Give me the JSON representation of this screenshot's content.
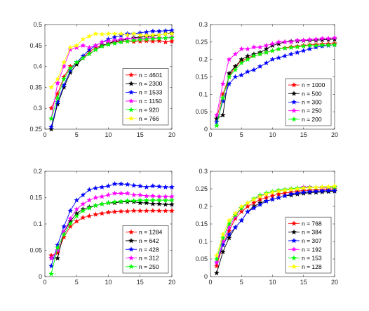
{
  "chart_data": [
    {
      "type": "line",
      "x": [
        1,
        2,
        3,
        4,
        5,
        6,
        7,
        8,
        9,
        10,
        11,
        12,
        13,
        14,
        15,
        16,
        17,
        18,
        19,
        20
      ],
      "xlim": [
        0,
        20
      ],
      "ylim": [
        0.25,
        0.5
      ],
      "xticks": [
        0,
        5,
        10,
        15,
        20
      ],
      "yticks": [
        0.25,
        0.3,
        0.35,
        0.4,
        0.45,
        0.5
      ],
      "ytick_labels": [
        "0.25",
        "0.3",
        "0.35",
        "0.4",
        "0.45",
        "0.5"
      ],
      "legend_position": "bottom-right",
      "series": [
        {
          "name": "n = 4601",
          "color": "#ff0000",
          "values": [
            0.3,
            0.335,
            0.375,
            0.4,
            0.405,
            0.42,
            0.435,
            0.445,
            0.45,
            0.455,
            0.458,
            0.46,
            0.46,
            0.459,
            0.46,
            0.461,
            0.46,
            0.461,
            0.458,
            0.46
          ]
        },
        {
          "name": "n = 2300",
          "color": "#000000",
          "values": [
            0.25,
            0.31,
            0.35,
            0.385,
            0.405,
            0.42,
            0.43,
            0.44,
            0.45,
            0.455,
            0.46,
            0.462,
            0.465,
            0.468,
            0.47,
            0.471,
            0.473,
            0.475,
            0.478,
            0.48
          ]
        },
        {
          "name": "n = 1533",
          "color": "#0000ff",
          "values": [
            0.255,
            0.315,
            0.355,
            0.39,
            0.41,
            0.425,
            0.44,
            0.45,
            0.458,
            0.465,
            0.47,
            0.474,
            0.478,
            0.478,
            0.48,
            0.482,
            0.484,
            0.484,
            0.485,
            0.486
          ]
        },
        {
          "name": "n = 1150",
          "color": "#ff00ff",
          "values": [
            0.275,
            0.36,
            0.4,
            0.44,
            0.445,
            0.45,
            0.445,
            0.45,
            0.458,
            0.46,
            0.462,
            0.465,
            0.466,
            0.466,
            0.466,
            0.468,
            0.468,
            0.468,
            0.468,
            0.47
          ]
        },
        {
          "name": "n = 920",
          "color": "#00ff00",
          "values": [
            0.275,
            0.325,
            0.37,
            0.395,
            0.41,
            0.42,
            0.43,
            0.44,
            0.448,
            0.452,
            0.455,
            0.458,
            0.46,
            0.462,
            0.464,
            0.465,
            0.466,
            0.467,
            0.468,
            0.468
          ]
        },
        {
          "name": "n = 766",
          "color": "#ffff00",
          "values": [
            0.35,
            0.37,
            0.41,
            0.445,
            0.45,
            0.465,
            0.472,
            0.478,
            0.477,
            0.478,
            0.478,
            0.478,
            0.475,
            0.478,
            0.475,
            0.474,
            0.475,
            0.475,
            0.478,
            0.478
          ]
        }
      ]
    },
    {
      "type": "line",
      "x": [
        1,
        2,
        3,
        4,
        5,
        6,
        7,
        8,
        9,
        10,
        11,
        12,
        13,
        14,
        15,
        16,
        17,
        18,
        19,
        20
      ],
      "xlim": [
        0,
        20
      ],
      "ylim": [
        0,
        0.3
      ],
      "xticks": [
        0,
        5,
        10,
        15,
        20
      ],
      "yticks": [
        0,
        0.05,
        0.1,
        0.15,
        0.2,
        0.25,
        0.3
      ],
      "ytick_labels": [
        "0",
        "0.05",
        "0.1",
        "0.15",
        "0.2",
        "0.25",
        "0.3"
      ],
      "legend_position": "bottom-right",
      "series": [
        {
          "name": "n = 1000",
          "color": "#ff0000",
          "values": [
            0.03,
            0.1,
            0.15,
            0.18,
            0.195,
            0.205,
            0.21,
            0.215,
            0.22,
            0.225,
            0.23,
            0.233,
            0.236,
            0.238,
            0.24,
            0.242,
            0.243,
            0.244,
            0.245,
            0.246
          ]
        },
        {
          "name": "n = 500",
          "color": "#000000",
          "values": [
            0.03,
            0.04,
            0.16,
            0.18,
            0.2,
            0.21,
            0.215,
            0.22,
            0.23,
            0.24,
            0.245,
            0.25,
            0.252,
            0.253,
            0.254,
            0.255,
            0.255,
            0.256,
            0.257,
            0.258
          ]
        },
        {
          "name": "n = 300",
          "color": "#0000ff",
          "values": [
            0.02,
            0.08,
            0.13,
            0.15,
            0.155,
            0.165,
            0.17,
            0.18,
            0.19,
            0.2,
            0.205,
            0.21,
            0.215,
            0.22,
            0.225,
            0.23,
            0.235,
            0.238,
            0.24,
            0.242
          ]
        },
        {
          "name": "n = 250",
          "color": "#ff00ff",
          "values": [
            0.04,
            0.13,
            0.2,
            0.215,
            0.23,
            0.23,
            0.235,
            0.235,
            0.24,
            0.245,
            0.25,
            0.25,
            0.25,
            0.255,
            0.255,
            0.257,
            0.258,
            0.26,
            0.26,
            0.262
          ]
        },
        {
          "name": "n = 200",
          "color": "#00ff00",
          "values": [
            0.01,
            0.09,
            0.15,
            0.17,
            0.19,
            0.2,
            0.21,
            0.215,
            0.22,
            0.225,
            0.23,
            0.232,
            0.234,
            0.236,
            0.238,
            0.24,
            0.24,
            0.241,
            0.241,
            0.242
          ]
        }
      ]
    },
    {
      "type": "line",
      "x": [
        1,
        2,
        3,
        4,
        5,
        6,
        7,
        8,
        9,
        10,
        11,
        12,
        13,
        14,
        15,
        16,
        17,
        18,
        19,
        20
      ],
      "xlim": [
        0,
        20
      ],
      "ylim": [
        0,
        0.2
      ],
      "xticks": [
        0,
        5,
        10,
        15,
        20
      ],
      "yticks": [
        0,
        0.05,
        0.1,
        0.15,
        0.2
      ],
      "ytick_labels": [
        "0",
        "0.05",
        "0.1",
        "0.15",
        "0.2"
      ],
      "legend_position": "bottom-right",
      "series": [
        {
          "name": "n = 1284",
          "color": "#ff0000",
          "values": [
            0.04,
            0.045,
            0.075,
            0.095,
            0.105,
            0.112,
            0.115,
            0.118,
            0.12,
            0.122,
            0.123,
            0.124,
            0.124,
            0.125,
            0.125,
            0.125,
            0.125,
            0.125,
            0.125,
            0.125
          ]
        },
        {
          "name": "n = 642",
          "color": "#000000",
          "values": [
            0.035,
            0.035,
            0.085,
            0.105,
            0.12,
            0.128,
            0.132,
            0.135,
            0.138,
            0.14,
            0.14,
            0.142,
            0.142,
            0.142,
            0.14,
            0.14,
            0.138,
            0.138,
            0.137,
            0.137
          ]
        },
        {
          "name": "n = 428",
          "color": "#0000ff",
          "values": [
            0.02,
            0.06,
            0.095,
            0.125,
            0.145,
            0.155,
            0.165,
            0.168,
            0.17,
            0.172,
            0.176,
            0.176,
            0.175,
            0.173,
            0.172,
            0.17,
            0.172,
            0.171,
            0.17,
            0.17
          ]
        },
        {
          "name": "n = 312",
          "color": "#ff00ff",
          "values": [
            0.035,
            0.05,
            0.085,
            0.11,
            0.128,
            0.138,
            0.145,
            0.15,
            0.152,
            0.155,
            0.158,
            0.158,
            0.158,
            0.155,
            0.155,
            0.153,
            0.153,
            0.152,
            0.152,
            0.152
          ]
        },
        {
          "name": "n = 250",
          "color": "#00ff00",
          "values": [
            0.005,
            0.055,
            0.08,
            0.1,
            0.115,
            0.125,
            0.13,
            0.135,
            0.138,
            0.14,
            0.142,
            0.143,
            0.144,
            0.144,
            0.145,
            0.145,
            0.145,
            0.145,
            0.145,
            0.145
          ]
        }
      ]
    },
    {
      "type": "line",
      "x": [
        1,
        2,
        3,
        4,
        5,
        6,
        7,
        8,
        9,
        10,
        11,
        12,
        13,
        14,
        15,
        16,
        17,
        18,
        19,
        20
      ],
      "xlim": [
        0,
        20
      ],
      "ylim": [
        0,
        0.3
      ],
      "xticks": [
        0,
        5,
        10,
        15,
        20
      ],
      "yticks": [
        0,
        0.05,
        0.1,
        0.15,
        0.2,
        0.25,
        0.3
      ],
      "ytick_labels": [
        "0",
        "0.05",
        "0.1",
        "0.15",
        "0.2",
        "0.25",
        "0.3"
      ],
      "legend_position": "bottom-right",
      "series": [
        {
          "name": "n = 768",
          "color": "#ff0000",
          "values": [
            0.03,
            0.09,
            0.13,
            0.165,
            0.185,
            0.2,
            0.21,
            0.22,
            0.225,
            0.23,
            0.235,
            0.238,
            0.24,
            0.243,
            0.245,
            0.246,
            0.247,
            0.248,
            0.249,
            0.25
          ]
        },
        {
          "name": "n = 384",
          "color": "#000000",
          "values": [
            0.01,
            0.07,
            0.11,
            0.14,
            0.16,
            0.185,
            0.2,
            0.21,
            0.215,
            0.22,
            0.225,
            0.23,
            0.232,
            0.235,
            0.237,
            0.239,
            0.24,
            0.241,
            0.242,
            0.243
          ]
        },
        {
          "name": "n = 307",
          "color": "#0000ff",
          "values": [
            0.04,
            0.09,
            0.12,
            0.14,
            0.16,
            0.185,
            0.195,
            0.205,
            0.215,
            0.22,
            0.225,
            0.23,
            0.235,
            0.238,
            0.24,
            0.242,
            0.243,
            0.244,
            0.245,
            0.245
          ]
        },
        {
          "name": "n = 192",
          "color": "#ff00ff",
          "values": [
            0.04,
            0.1,
            0.14,
            0.17,
            0.195,
            0.21,
            0.22,
            0.23,
            0.235,
            0.24,
            0.245,
            0.248,
            0.25,
            0.252,
            0.255,
            0.255,
            0.254,
            0.253,
            0.254,
            0.255
          ]
        },
        {
          "name": "n = 153",
          "color": "#00ff00",
          "values": [
            0.05,
            0.11,
            0.15,
            0.175,
            0.195,
            0.21,
            0.222,
            0.232,
            0.238,
            0.242,
            0.246,
            0.248,
            0.25,
            0.252,
            0.253,
            0.254,
            0.254,
            0.255,
            0.255,
            0.255
          ]
        },
        {
          "name": "n = 128",
          "color": "#ffff00",
          "values": [
            0.06,
            0.12,
            0.16,
            0.18,
            0.2,
            0.21,
            0.22,
            0.228,
            0.235,
            0.24,
            0.243,
            0.246,
            0.248,
            0.25,
            0.252,
            0.253,
            0.254,
            0.255,
            0.256,
            0.258
          ]
        }
      ]
    }
  ]
}
